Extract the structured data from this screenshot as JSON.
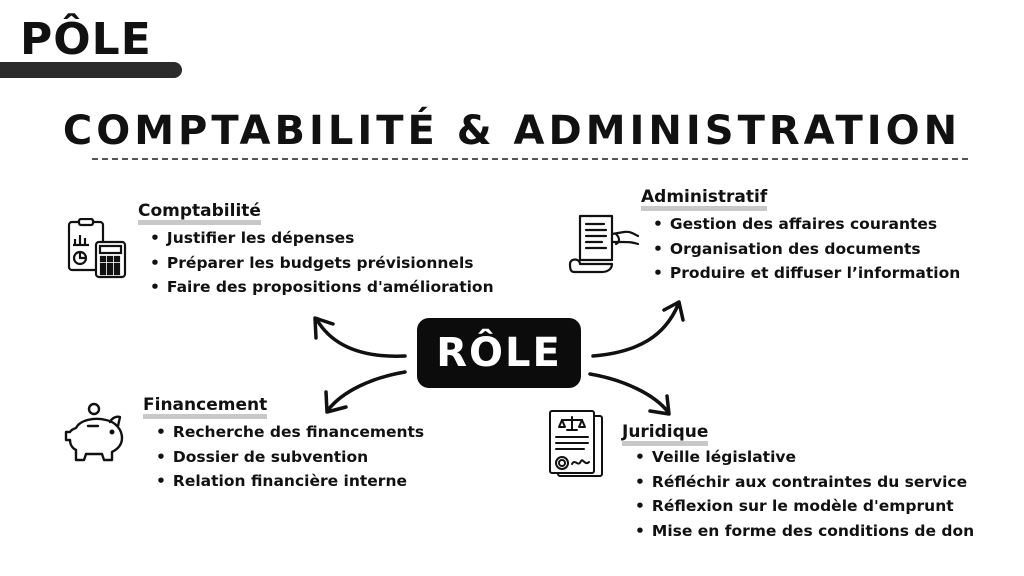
{
  "tag": {
    "text": "PÔLE"
  },
  "title": "COMPTABILITÉ & ADMINISTRATION",
  "center": {
    "label": "RÔLE"
  },
  "sections": {
    "comptabilite": {
      "heading": "Comptabilité",
      "icon": "calculator-chart-icon",
      "items": [
        "Justifier les dépenses",
        "Préparer les budgets prévisionnels",
        "Faire des propositions d'amélioration"
      ]
    },
    "administratif": {
      "heading": "Administratif",
      "icon": "document-hand-icon",
      "items": [
        "Gestion des affaires courantes",
        "Organisation des documents",
        "Produire et diffuser l’information"
      ]
    },
    "financement": {
      "heading": "Financement",
      "icon": "piggy-bank-icon",
      "items": [
        "Recherche des financements",
        "Dossier de subvention",
        "Relation financière interne"
      ]
    },
    "juridique": {
      "heading": "Juridique",
      "icon": "legal-document-icon",
      "items": [
        "Veille législative",
        "Réfléchir aux contraintes du service",
        "Réflexion sur le modèle d'emprunt",
        "Mise en forme des conditions de don"
      ]
    }
  },
  "colors": {
    "primary": "#111111",
    "highlight": "#c8c8c8",
    "center_bg": "#0c0c0c"
  }
}
